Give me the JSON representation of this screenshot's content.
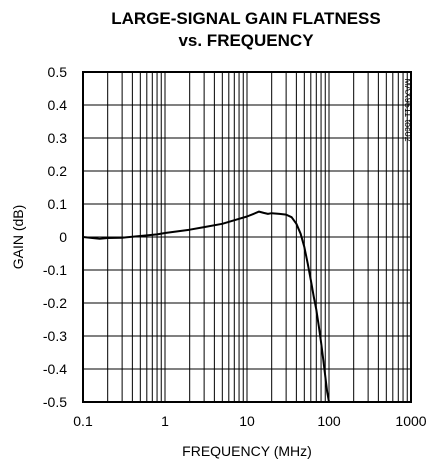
{
  "chart_data": {
    "type": "line",
    "title": "LARGE-SIGNAL GAIN FLATNESS",
    "subtitle": "vs. FREQUENCY",
    "xlabel": "FREQUENCY (MHz)",
    "ylabel": "GAIN (dB)",
    "x_scale": "log",
    "xlim": [
      0.1,
      1000
    ],
    "ylim": [
      -0.5,
      0.5
    ],
    "x_ticks": [
      "0.1",
      "1",
      "10",
      "100",
      "1000"
    ],
    "y_ticks": [
      "0.5",
      "0.4",
      "0.3",
      "0.2",
      "0.1",
      "0",
      "-0.1",
      "-0.2",
      "-0.3",
      "-0.4",
      "-0.5"
    ],
    "grid": true,
    "annotation": "MAX9511 toc02",
    "series": [
      {
        "x": [
          0.1,
          0.13,
          0.16,
          0.2,
          0.3,
          0.5,
          0.8,
          1,
          2,
          3,
          5,
          8,
          10,
          12,
          14,
          16,
          18,
          20,
          25,
          30,
          35,
          40,
          45,
          50,
          55,
          60,
          65,
          70,
          75,
          80,
          85,
          90,
          95,
          100
        ],
        "y": [
          0.0,
          -0.003,
          -0.005,
          -0.003,
          -0.002,
          0.003,
          0.008,
          0.012,
          0.022,
          0.03,
          0.04,
          0.055,
          0.062,
          0.07,
          0.077,
          0.073,
          0.07,
          0.072,
          0.07,
          0.068,
          0.06,
          0.04,
          0.01,
          -0.03,
          -0.08,
          -0.13,
          -0.18,
          -0.22,
          -0.27,
          -0.32,
          -0.37,
          -0.42,
          -0.47,
          -0.5
        ]
      }
    ]
  }
}
